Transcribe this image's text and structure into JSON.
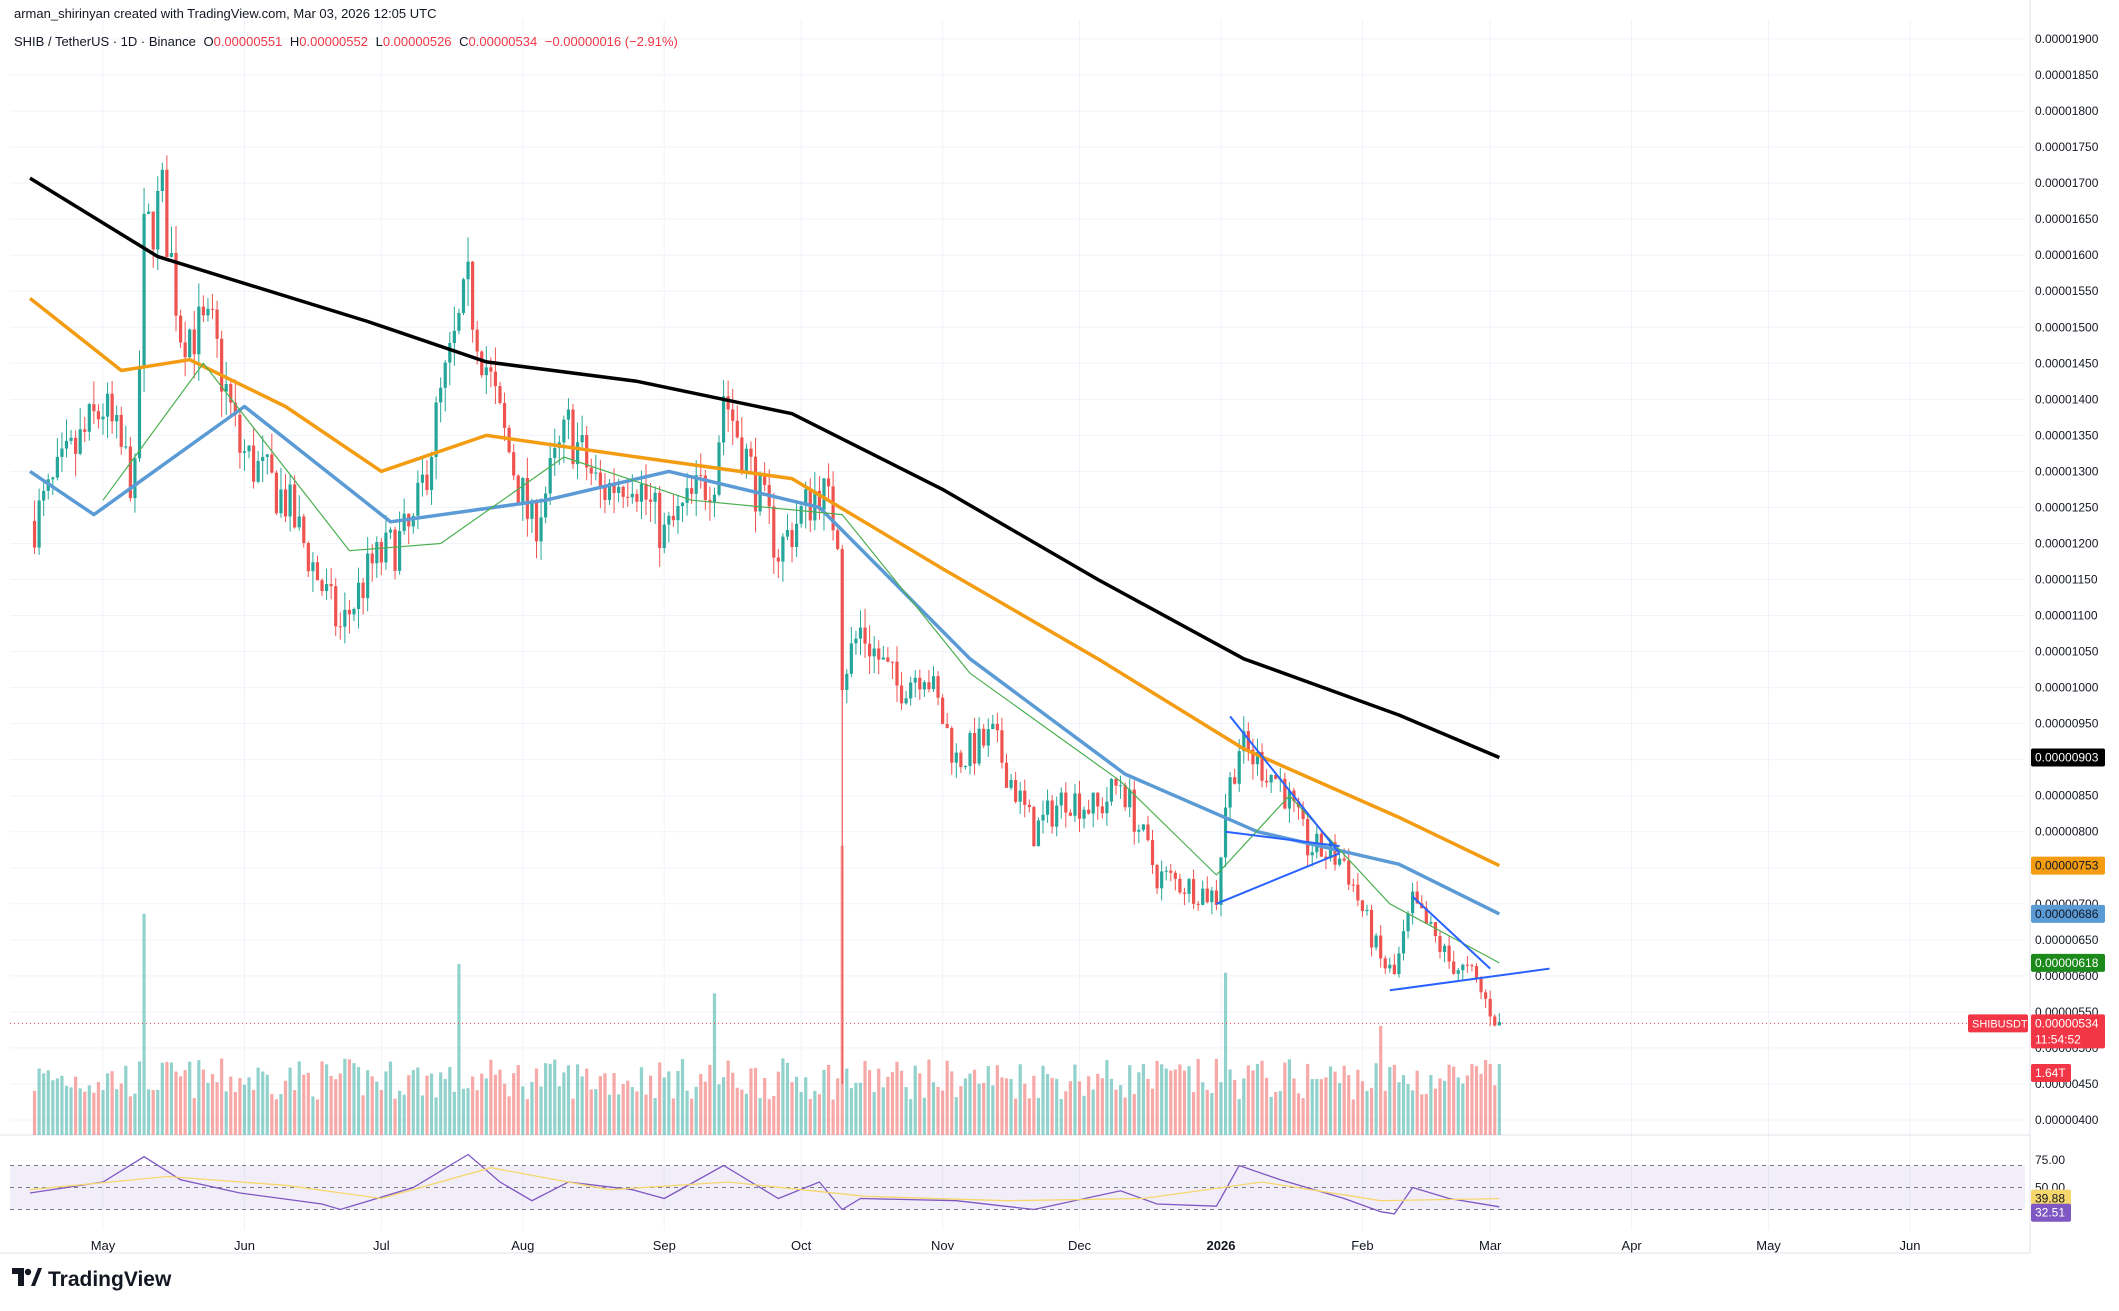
{
  "credit": "arman_shirinyan created with TradingView.com, Mar 03, 2026 12:05 UTC",
  "legend": {
    "symbol": "SHIB / TetherUS · 1D · Binance",
    "open_label": "O",
    "open": "0.00000551",
    "high_label": "H",
    "high": "0.00000552",
    "low_label": "L",
    "low": "0.00000526",
    "close_label": "C",
    "close": "0.00000534",
    "change": "−0.00000016 (−2.91%)"
  },
  "brand": "TradingView",
  "colors": {
    "up": "#26a69a",
    "down": "#ef5350",
    "ma200": "#000000",
    "ma100": "#f39c12",
    "ma50": "#5b9bd5",
    "ma20": "#4caf50",
    "trendline": "#2962ff",
    "rsi": "#7e57c2",
    "rsi_ma": "#f5d76e"
  },
  "chart_data": {
    "type": "candlestick",
    "symbol": "SHIBUSDT",
    "ylim": [
      3.8e-06,
      1.93e-05
    ],
    "y_ticks": [
      "0.00001900",
      "0.00001850",
      "0.00001800",
      "0.00001750",
      "0.00001700",
      "0.00001650",
      "0.00001600",
      "0.00001550",
      "0.00001500",
      "0.00001450",
      "0.00001400",
      "0.00001350",
      "0.00001300",
      "0.00001250",
      "0.00001200",
      "0.00001150",
      "0.00001100",
      "0.00001050",
      "0.00001000",
      "0.00000950",
      "0.00000900",
      "0.00000850",
      "0.00000800",
      "0.00000750",
      "0.00000700",
      "0.00000650",
      "0.00000600",
      "0.00000550",
      "0.00000500",
      "0.00000450",
      "0.00000400"
    ],
    "x_labels": [
      {
        "label": "May",
        "date": "2025-05-01"
      },
      {
        "label": "Jun",
        "date": "2025-06-01"
      },
      {
        "label": "Jul",
        "date": "2025-07-01"
      },
      {
        "label": "Aug",
        "date": "2025-08-01"
      },
      {
        "label": "Sep",
        "date": "2025-09-01"
      },
      {
        "label": "Oct",
        "date": "2025-10-01"
      },
      {
        "label": "Nov",
        "date": "2025-11-01"
      },
      {
        "label": "Dec",
        "date": "2025-12-01"
      },
      {
        "label": "2026",
        "date": "2026-01-01"
      },
      {
        "label": "Feb",
        "date": "2026-02-01"
      },
      {
        "label": "Mar",
        "date": "2026-03-01"
      },
      {
        "label": "Apr",
        "date": "2026-04-01"
      },
      {
        "label": "May",
        "date": "2026-05-01"
      },
      {
        "label": "Jun",
        "date": "2026-06-01"
      }
    ],
    "price_path": [
      {
        "date": "2025-04-15",
        "price": 1.22e-05
      },
      {
        "date": "2025-04-23",
        "price": 1.31e-05
      },
      {
        "date": "2025-05-01",
        "price": 1.39e-05
      },
      {
        "date": "2025-05-08",
        "price": 1.28e-05
      },
      {
        "date": "2025-05-10",
        "price": 1.62e-05
      },
      {
        "date": "2025-05-14",
        "price": 1.68e-05
      },
      {
        "date": "2025-05-18",
        "price": 1.5e-05
      },
      {
        "date": "2025-05-25",
        "price": 1.49e-05
      },
      {
        "date": "2025-05-31",
        "price": 1.33e-05
      },
      {
        "date": "2025-06-10",
        "price": 1.26e-05
      },
      {
        "date": "2025-06-18",
        "price": 1.14e-05
      },
      {
        "date": "2025-06-22",
        "price": 1.08e-05
      },
      {
        "date": "2025-06-29",
        "price": 1.17e-05
      },
      {
        "date": "2025-07-08",
        "price": 1.22e-05
      },
      {
        "date": "2025-07-14",
        "price": 1.4e-05
      },
      {
        "date": "2025-07-20",
        "price": 1.55e-05
      },
      {
        "date": "2025-07-27",
        "price": 1.37e-05
      },
      {
        "date": "2025-08-03",
        "price": 1.22e-05
      },
      {
        "date": "2025-08-11",
        "price": 1.36e-05
      },
      {
        "date": "2025-08-18",
        "price": 1.27e-05
      },
      {
        "date": "2025-08-25",
        "price": 1.3e-05
      },
      {
        "date": "2025-09-01",
        "price": 1.21e-05
      },
      {
        "date": "2025-09-12",
        "price": 1.3e-05
      },
      {
        "date": "2025-09-14",
        "price": 1.41e-05
      },
      {
        "date": "2025-09-20",
        "price": 1.3e-05
      },
      {
        "date": "2025-09-26",
        "price": 1.19e-05
      },
      {
        "date": "2025-10-05",
        "price": 1.28e-05
      },
      {
        "date": "2025-10-09",
        "price": 1.22e-05
      },
      {
        "date": "2025-10-10",
        "price": 1.02e-05
      },
      {
        "date": "2025-10-14",
        "price": 1.08e-05
      },
      {
        "date": "2025-10-22",
        "price": 1e-05
      },
      {
        "date": "2025-10-28",
        "price": 1.03e-05
      },
      {
        "date": "2025-11-04",
        "price": 9e-06
      },
      {
        "date": "2025-11-12",
        "price": 9.3e-06
      },
      {
        "date": "2025-11-21",
        "price": 8e-06
      },
      {
        "date": "2025-11-28",
        "price": 8.5e-06
      },
      {
        "date": "2025-12-05",
        "price": 8.3e-06
      },
      {
        "date": "2025-12-10",
        "price": 8.7e-06
      },
      {
        "date": "2025-12-18",
        "price": 7.4e-06
      },
      {
        "date": "2025-12-31",
        "price": 7.1e-06
      },
      {
        "date": "2026-01-02",
        "price": 8.4e-06
      },
      {
        "date": "2026-01-05",
        "price": 9.2e-06
      },
      {
        "date": "2026-01-14",
        "price": 8.7e-06
      },
      {
        "date": "2026-01-20",
        "price": 7.8e-06
      },
      {
        "date": "2026-01-28",
        "price": 7.6e-06
      },
      {
        "date": "2026-02-05",
        "price": 6.2e-06
      },
      {
        "date": "2026-02-08",
        "price": 6e-06
      },
      {
        "date": "2026-02-12",
        "price": 7e-06
      },
      {
        "date": "2026-02-20",
        "price": 6.2e-06
      },
      {
        "date": "2026-02-25",
        "price": 6e-06
      },
      {
        "date": "2026-03-03",
        "price": 5.3e-06
      }
    ],
    "volume_spikes": [
      {
        "date": "2025-05-10",
        "rel": 0.75
      },
      {
        "date": "2025-07-18",
        "rel": 0.58
      },
      {
        "date": "2025-09-12",
        "rel": 0.48
      },
      {
        "date": "2025-10-10",
        "rel": 0.98
      },
      {
        "date": "2026-01-02",
        "rel": 0.55
      },
      {
        "date": "2026-02-05",
        "rel": 0.37
      }
    ],
    "moving_averages": [
      {
        "period": 200,
        "color": "#000000",
        "points": [
          {
            "date": "2025-04-15",
            "price": 1.707e-05
          },
          {
            "date": "2025-05-13",
            "price": 1.598e-05
          },
          {
            "date": "2025-06-28",
            "price": 1.508e-05
          },
          {
            "date": "2025-07-24",
            "price": 1.452e-05
          },
          {
            "date": "2025-08-26",
            "price": 1.425e-05
          },
          {
            "date": "2025-09-29",
            "price": 1.38e-05
          },
          {
            "date": "2025-11-01",
            "price": 1.275e-05
          },
          {
            "date": "2025-12-05",
            "price": 1.15e-05
          },
          {
            "date": "2026-01-06",
            "price": 1.04e-05
          },
          {
            "date": "2026-02-09",
            "price": 9.62e-06
          },
          {
            "date": "2026-03-03",
            "price": 9.03e-06
          }
        ]
      },
      {
        "period": 100,
        "color": "#f39c12",
        "points": [
          {
            "date": "2025-04-15",
            "price": 1.54e-05
          },
          {
            "date": "2025-05-05",
            "price": 1.44e-05
          },
          {
            "date": "2025-05-20",
            "price": 1.455e-05
          },
          {
            "date": "2025-06-10",
            "price": 1.39e-05
          },
          {
            "date": "2025-07-01",
            "price": 1.3e-05
          },
          {
            "date": "2025-07-24",
            "price": 1.35e-05
          },
          {
            "date": "2025-08-26",
            "price": 1.32e-05
          },
          {
            "date": "2025-09-29",
            "price": 1.29e-05
          },
          {
            "date": "2025-11-01",
            "price": 1.165e-05
          },
          {
            "date": "2025-12-05",
            "price": 1.04e-05
          },
          {
            "date": "2026-01-06",
            "price": 9.15e-06
          },
          {
            "date": "2026-02-09",
            "price": 8.2e-06
          },
          {
            "date": "2026-03-03",
            "price": 7.53e-06
          }
        ]
      },
      {
        "period": 50,
        "color": "#5b9bd5",
        "points": [
          {
            "date": "2025-04-15",
            "price": 1.3e-05
          },
          {
            "date": "2025-04-29",
            "price": 1.24e-05
          },
          {
            "date": "2025-06-01",
            "price": 1.39e-05
          },
          {
            "date": "2025-07-03",
            "price": 1.23e-05
          },
          {
            "date": "2025-08-06",
            "price": 1.26e-05
          },
          {
            "date": "2025-09-02",
            "price": 1.3e-05
          },
          {
            "date": "2025-10-05",
            "price": 1.25e-05
          },
          {
            "date": "2025-11-07",
            "price": 1.04e-05
          },
          {
            "date": "2025-12-11",
            "price": 8.8e-06
          },
          {
            "date": "2026-01-09",
            "price": 8e-06
          },
          {
            "date": "2026-02-09",
            "price": 7.55e-06
          },
          {
            "date": "2026-03-03",
            "price": 6.86e-06
          }
        ]
      },
      {
        "period": 20,
        "color": "#4caf50",
        "points": [
          {
            "date": "2025-05-01",
            "price": 1.26e-05
          },
          {
            "date": "2025-05-23",
            "price": 1.45e-05
          },
          {
            "date": "2025-06-24",
            "price": 1.19e-05
          },
          {
            "date": "2025-07-14",
            "price": 1.2e-05
          },
          {
            "date": "2025-08-10",
            "price": 1.32e-05
          },
          {
            "date": "2025-09-07",
            "price": 1.26e-05
          },
          {
            "date": "2025-10-10",
            "price": 1.24e-05
          },
          {
            "date": "2025-11-07",
            "price": 1.02e-05
          },
          {
            "date": "2025-12-10",
            "price": 8.7e-06
          },
          {
            "date": "2025-12-31",
            "price": 7.4e-06
          },
          {
            "date": "2026-01-16",
            "price": 8.5e-06
          },
          {
            "date": "2026-02-07",
            "price": 7e-06
          },
          {
            "date": "2026-03-03",
            "price": 6.18e-06
          }
        ]
      }
    ],
    "trendlines": [
      {
        "from": {
          "date": "2026-01-03",
          "price": 9.6e-06
        },
        "to": {
          "date": "2026-01-27",
          "price": 7.7e-06
        }
      },
      {
        "from": {
          "date": "2025-12-31",
          "price": 7e-06
        },
        "to": {
          "date": "2026-01-27",
          "price": 7.7e-06
        }
      },
      {
        "from": {
          "date": "2026-01-02",
          "price": 8e-06
        },
        "to": {
          "date": "2026-01-27",
          "price": 7.8e-06
        }
      },
      {
        "from": {
          "date": "2026-02-12",
          "price": 7.1e-06
        },
        "to": {
          "date": "2026-03-01",
          "price": 6.1e-06
        }
      },
      {
        "from": {
          "date": "2026-02-07",
          "price": 5.8e-06
        },
        "to": {
          "date": "2026-03-14",
          "price": 6.1e-06
        }
      }
    ],
    "price_badges": [
      {
        "name": "ma200-badge",
        "label": "0.00000903",
        "price": 9.03e-06,
        "color": "#000000",
        "text": "#ffffff"
      },
      {
        "name": "ma100-badge",
        "label": "0.00000753",
        "price": 7.53e-06,
        "color": "#f39c12",
        "text": "#131722"
      },
      {
        "name": "ma50-badge",
        "label": "0.00000686",
        "price": 6.86e-06,
        "color": "#5b9bd5",
        "text": "#131722"
      },
      {
        "name": "ma20-badge",
        "label": "0.00000618",
        "price": 6.18e-06,
        "color": "#1b8a1b",
        "text": "#ffffff"
      }
    ],
    "last_price": {
      "label": "0.00000534",
      "price": 5.34e-06,
      "countdown": "11:54:52",
      "symbol": "SHIBUSDT",
      "color": "#f23645"
    },
    "volume_badge": {
      "label": "1.64T",
      "color": "#f23645"
    },
    "rsi": {
      "ticks": [
        "75.00",
        "50.00",
        "25.00"
      ],
      "upper": 70,
      "lower": 30,
      "value_label": "32.51",
      "ma_label": "39.88",
      "path": [
        {
          "date": "2025-04-15",
          "v": 45
        },
        {
          "date": "2025-05-01",
          "v": 55
        },
        {
          "date": "2025-05-10",
          "v": 78
        },
        {
          "date": "2025-05-18",
          "v": 57
        },
        {
          "date": "2025-05-31",
          "v": 45
        },
        {
          "date": "2025-06-18",
          "v": 35
        },
        {
          "date": "2025-06-22",
          "v": 30
        },
        {
          "date": "2025-07-08",
          "v": 50
        },
        {
          "date": "2025-07-20",
          "v": 80
        },
        {
          "date": "2025-07-27",
          "v": 55
        },
        {
          "date": "2025-08-03",
          "v": 38
        },
        {
          "date": "2025-08-11",
          "v": 55
        },
        {
          "date": "2025-08-25",
          "v": 48
        },
        {
          "date": "2025-09-01",
          "v": 40
        },
        {
          "date": "2025-09-14",
          "v": 70
        },
        {
          "date": "2025-09-26",
          "v": 40
        },
        {
          "date": "2025-10-05",
          "v": 55
        },
        {
          "date": "2025-10-10",
          "v": 30
        },
        {
          "date": "2025-10-14",
          "v": 40
        },
        {
          "date": "2025-11-04",
          "v": 38
        },
        {
          "date": "2025-11-21",
          "v": 30
        },
        {
          "date": "2025-12-10",
          "v": 47
        },
        {
          "date": "2025-12-18",
          "v": 35
        },
        {
          "date": "2025-12-31",
          "v": 33
        },
        {
          "date": "2026-01-05",
          "v": 70
        },
        {
          "date": "2026-01-14",
          "v": 57
        },
        {
          "date": "2026-01-28",
          "v": 40
        },
        {
          "date": "2026-02-05",
          "v": 28
        },
        {
          "date": "2026-02-08",
          "v": 26
        },
        {
          "date": "2026-02-12",
          "v": 50
        },
        {
          "date": "2026-02-20",
          "v": 40
        },
        {
          "date": "2026-03-03",
          "v": 32.5
        }
      ],
      "ma_path": [
        {
          "date": "2025-04-15",
          "v": 48
        },
        {
          "date": "2025-05-15",
          "v": 60
        },
        {
          "date": "2025-06-10",
          "v": 52
        },
        {
          "date": "2025-07-01",
          "v": 40
        },
        {
          "date": "2025-07-25",
          "v": 68
        },
        {
          "date": "2025-08-20",
          "v": 48
        },
        {
          "date": "2025-09-15",
          "v": 55
        },
        {
          "date": "2025-10-15",
          "v": 42
        },
        {
          "date": "2025-11-15",
          "v": 38
        },
        {
          "date": "2025-12-15",
          "v": 40
        },
        {
          "date": "2026-01-10",
          "v": 55
        },
        {
          "date": "2026-02-05",
          "v": 38
        },
        {
          "date": "2026-03-03",
          "v": 39.9
        }
      ]
    }
  }
}
